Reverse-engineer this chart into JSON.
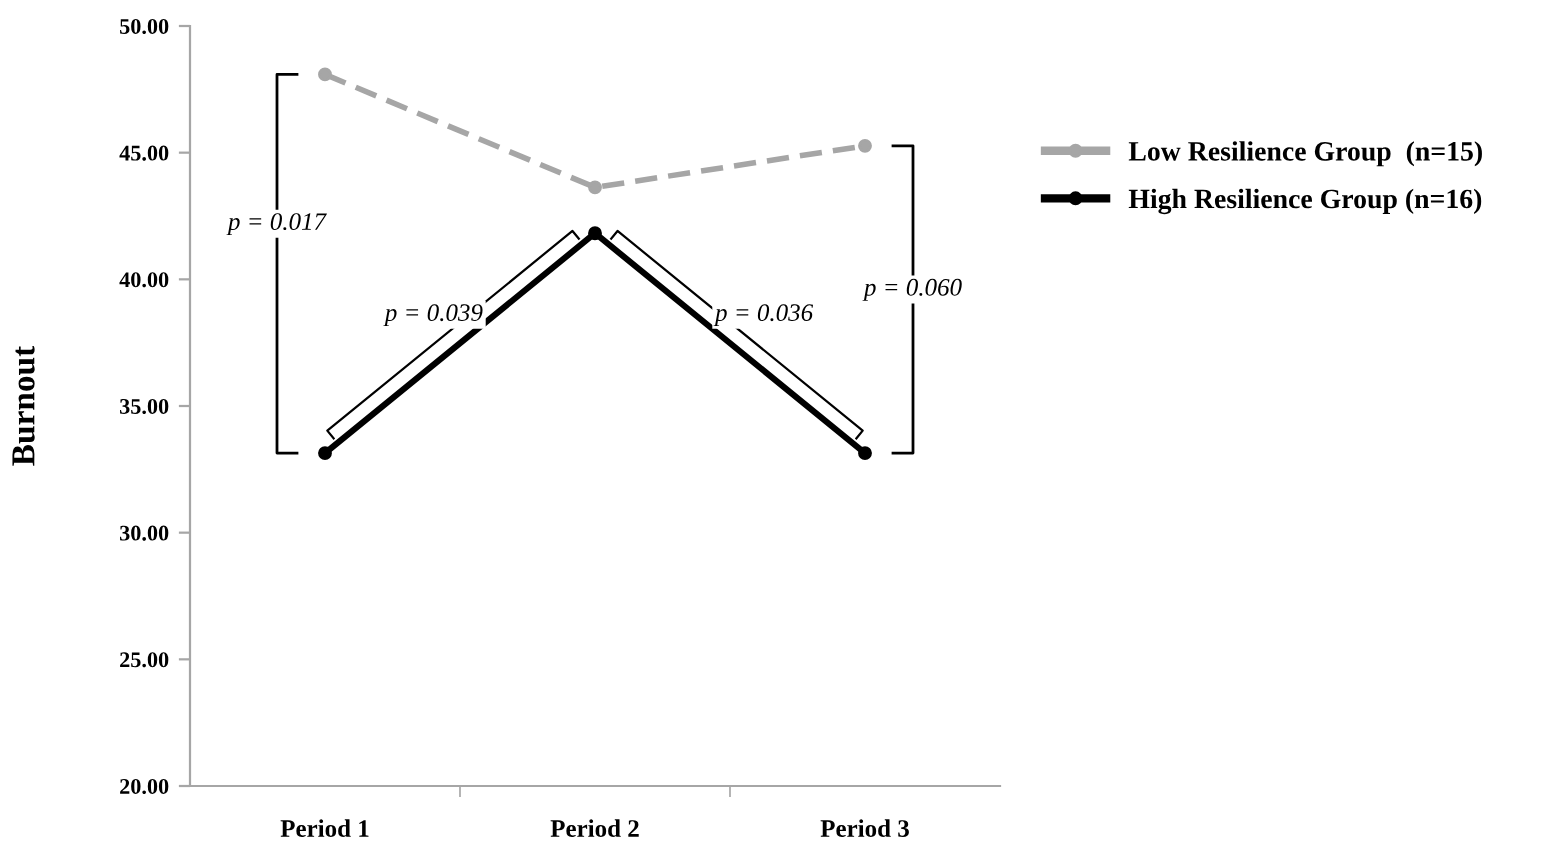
{
  "chart_data": {
    "type": "line",
    "ylabel": "Burnout",
    "categories": [
      "Period 1",
      "Period 2",
      "Period 3"
    ],
    "series": [
      {
        "name": "Low Resilience Group  (n=15)",
        "color": "#a6a6a6",
        "values": [
          48.09,
          43.63,
          45.27
        ],
        "line_style": "dashed",
        "marker": "circle"
      },
      {
        "name": "High Resilience Group (n=16)",
        "color": "#000000",
        "values": [
          33.14,
          41.82,
          33.14
        ],
        "line_style": "solid",
        "marker": "circle"
      }
    ],
    "ylim": [
      20,
      50
    ],
    "yticks": [
      {
        "value": 20,
        "label": "20.00"
      },
      {
        "value": 25,
        "label": "25.00"
      },
      {
        "value": 30,
        "label": "30.00"
      },
      {
        "value": 35,
        "label": "35.00"
      },
      {
        "value": 40,
        "label": "40.00"
      },
      {
        "value": 45,
        "label": "45.00"
      },
      {
        "value": 50,
        "label": "50.00"
      }
    ],
    "annotations": [
      "p = 0.017",
      "p = 0.039",
      "p = 0.036",
      "p = 0.060"
    ],
    "grid": false,
    "legend": "top right"
  }
}
